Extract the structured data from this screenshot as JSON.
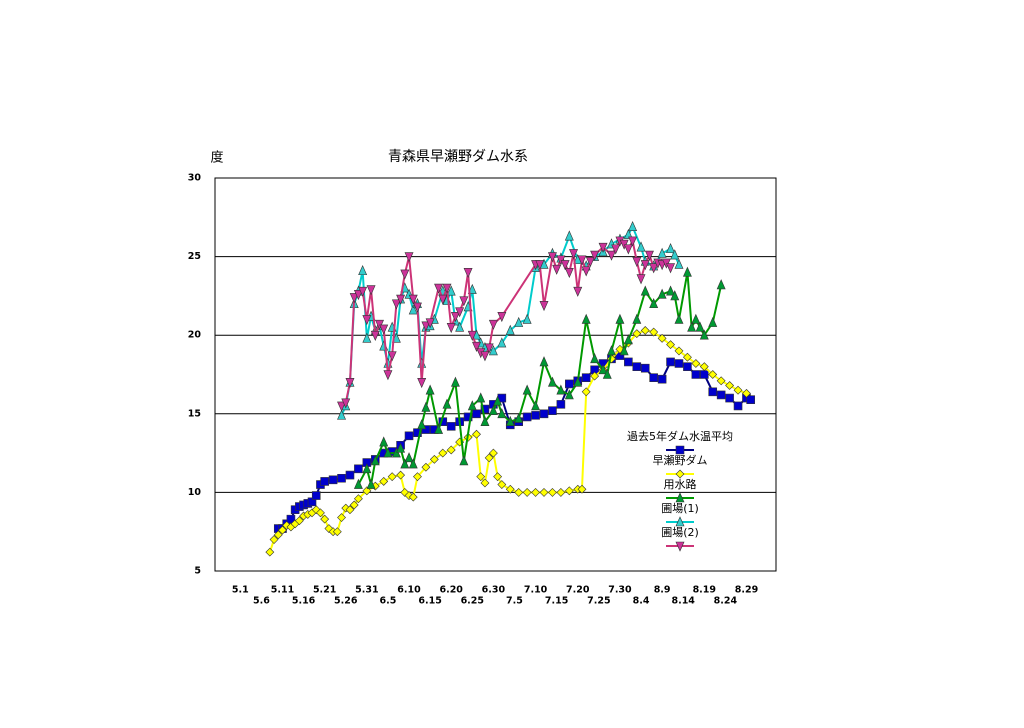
{
  "chart_data": {
    "type": "line",
    "title": "青森県早瀬野ダム水系",
    "y_label": "度",
    "xlim": [
      -6,
      127
    ],
    "ylim": [
      5,
      30
    ],
    "yticks": [
      5,
      10,
      15,
      20,
      25,
      30
    ],
    "grid": true,
    "legend": "right",
    "xticks": [
      {
        "value": 0,
        "label": "5.1"
      },
      {
        "value": 5,
        "label": "5.6"
      },
      {
        "value": 10,
        "label": "5.11"
      },
      {
        "value": 15,
        "label": "5.16"
      },
      {
        "value": 20,
        "label": "5.21"
      },
      {
        "value": 25,
        "label": "5.26"
      },
      {
        "value": 30,
        "label": "5.31"
      },
      {
        "value": 35,
        "label": "6.5"
      },
      {
        "value": 40,
        "label": "6.10"
      },
      {
        "value": 45,
        "label": "6.15"
      },
      {
        "value": 50,
        "label": "6.20"
      },
      {
        "value": 55,
        "label": "6.25"
      },
      {
        "value": 60,
        "label": "6.30"
      },
      {
        "value": 65,
        "label": "7.5"
      },
      {
        "value": 70,
        "label": "7.10"
      },
      {
        "value": 75,
        "label": "7.15"
      },
      {
        "value": 80,
        "label": "7.20"
      },
      {
        "value": 85,
        "label": "7.25"
      },
      {
        "value": 90,
        "label": "7.30"
      },
      {
        "value": 95,
        "label": "8.4"
      },
      {
        "value": 100,
        "label": "8.9"
      },
      {
        "value": 105,
        "label": "8.14"
      },
      {
        "value": 110,
        "label": "8.19"
      },
      {
        "value": 115,
        "label": "8.24"
      },
      {
        "value": 120,
        "label": "8.29"
      }
    ],
    "series": [
      {
        "name": "過去5年ダム水温平均",
        "color": "#000080",
        "marker_color": "#0000cc",
        "marker": "square",
        "x": [
          9,
          10,
          11,
          12,
          13,
          14,
          15,
          16,
          17,
          18,
          19,
          20,
          22,
          24,
          26,
          28,
          30,
          32,
          34,
          36,
          38,
          40,
          42,
          44,
          46,
          48,
          50,
          52,
          54,
          56,
          58,
          60,
          62,
          64,
          66,
          68,
          70,
          72,
          74,
          76,
          78,
          80,
          82,
          84,
          86,
          88,
          90,
          92,
          94,
          96,
          98,
          100,
          102,
          104,
          106,
          108,
          110,
          112,
          114,
          116,
          118,
          120,
          121
        ],
        "values": [
          7.7,
          7.7,
          8.0,
          8.3,
          8.9,
          9.1,
          9.2,
          9.3,
          9.4,
          9.8,
          10.5,
          10.7,
          10.8,
          10.9,
          11.1,
          11.5,
          11.9,
          12.1,
          12.5,
          12.6,
          13.0,
          13.6,
          13.8,
          14.0,
          14.0,
          14.5,
          14.2,
          14.5,
          14.8,
          15.0,
          15.3,
          15.6,
          16.0,
          14.3,
          14.5,
          14.8,
          14.9,
          15.0,
          15.2,
          15.6,
          16.9,
          17.1,
          17.3,
          17.8,
          18.2,
          18.5,
          18.7,
          18.3,
          18.0,
          17.9,
          17.3,
          17.2,
          18.3,
          18.2,
          18.0,
          17.5,
          17.5,
          16.4,
          16.2,
          16.0,
          15.5,
          16.0,
          15.9
        ]
      },
      {
        "name": "早瀬野ダム",
        "color": "#ffff00",
        "marker_color": "#ffff00",
        "marker": "diamond",
        "x": [
          7,
          8,
          9,
          10,
          11,
          12,
          13,
          14,
          15,
          16,
          17,
          18,
          19,
          20,
          21,
          22,
          23,
          24,
          25,
          26,
          27,
          28,
          30,
          32,
          34,
          36,
          38,
          39,
          40,
          41,
          42,
          44,
          46,
          48,
          50,
          52,
          54,
          56,
          57,
          58,
          59,
          60,
          61,
          62,
          64,
          66,
          68,
          70,
          72,
          74,
          76,
          78,
          80,
          81,
          82,
          84,
          86,
          88,
          90,
          92,
          94,
          96,
          98,
          100,
          102,
          104,
          106,
          108,
          110,
          112,
          114,
          116,
          118,
          120
        ],
        "values": [
          6.2,
          7.0,
          7.3,
          7.6,
          7.9,
          7.8,
          8.0,
          8.2,
          8.5,
          8.6,
          8.7,
          8.9,
          8.7,
          8.3,
          7.7,
          7.5,
          7.5,
          8.4,
          9.0,
          8.9,
          9.2,
          9.6,
          10.1,
          10.4,
          10.7,
          11.0,
          11.1,
          10.0,
          9.8,
          9.7,
          11.0,
          11.6,
          12.1,
          12.5,
          12.7,
          13.2,
          13.5,
          13.7,
          11.0,
          10.6,
          12.2,
          12.5,
          11.0,
          10.5,
          10.2,
          10.0,
          10.0,
          10.0,
          10.0,
          10.0,
          10.0,
          10.1,
          10.2,
          10.2,
          16.4,
          17.4,
          17.8,
          18.5,
          19.1,
          19.5,
          20.1,
          20.3,
          20.2,
          19.8,
          19.4,
          19.0,
          18.6,
          18.2,
          18.0,
          17.5,
          17.1,
          16.8,
          16.5,
          16.3
        ]
      },
      {
        "name": "用水路",
        "color": "#009900",
        "marker_color": "#009933",
        "marker": "triangle-up",
        "x": [
          28,
          30,
          31,
          32,
          34,
          35,
          37,
          38,
          39,
          40,
          41,
          43,
          44,
          45,
          47,
          49,
          51,
          53,
          55,
          57,
          58,
          60,
          61,
          62,
          64,
          66,
          68,
          70,
          72,
          74,
          76,
          78,
          80,
          82,
          84,
          86,
          87,
          88,
          90,
          91,
          92,
          94,
          96,
          98,
          100,
          102,
          103,
          104,
          106,
          107,
          108,
          109,
          110,
          112,
          114
        ],
        "values": [
          10.5,
          11.5,
          10.5,
          12.0,
          13.2,
          12.5,
          12.5,
          12.8,
          11.8,
          12.2,
          11.8,
          14.3,
          15.4,
          16.5,
          14.0,
          15.6,
          17.0,
          12.0,
          15.5,
          16.0,
          14.5,
          15.2,
          15.8,
          15.0,
          14.5,
          14.7,
          16.5,
          15.5,
          18.3,
          17.0,
          16.5,
          16.2,
          17.0,
          21.0,
          18.5,
          17.8,
          17.5,
          19.0,
          21.0,
          19.0,
          19.7,
          21.0,
          22.8,
          22.0,
          22.6,
          22.8,
          22.5,
          21.0,
          24.0,
          20.5,
          21.0,
          20.5,
          20.0,
          20.8,
          23.2
        ]
      },
      {
        "name": "圃場(1)",
        "color": "#00cccc",
        "marker_color": "#33cccc",
        "marker": "triangle-up",
        "x": [
          24,
          25,
          26,
          27,
          28,
          29,
          30,
          31,
          32,
          33,
          34,
          35,
          36,
          37,
          38,
          39,
          40,
          41,
          42,
          43,
          44,
          45,
          46,
          48,
          49,
          50,
          51,
          52,
          54,
          55,
          56,
          57,
          58,
          60,
          62,
          64,
          66,
          68,
          70,
          72,
          74,
          76,
          78,
          80,
          82,
          84,
          86,
          88,
          90,
          92,
          93,
          95,
          96,
          98,
          100,
          102,
          103,
          104
        ],
        "values": [
          14.9,
          15.5,
          17.0,
          22.0,
          22.8,
          24.1,
          19.8,
          21.2,
          20.3,
          20.6,
          19.3,
          18.2,
          20.5,
          19.8,
          22.3,
          23.0,
          22.6,
          21.6,
          22.0,
          18.2,
          20.5,
          20.6,
          21.0,
          22.8,
          22.2,
          22.8,
          20.9,
          20.5,
          21.8,
          22.9,
          20.0,
          19.5,
          19.2,
          19.0,
          19.5,
          20.3,
          20.8,
          21.0,
          24.3,
          24.5,
          25.2,
          24.9,
          26.3,
          24.8,
          24.4,
          25.0,
          25.3,
          25.8,
          26.1,
          26.4,
          26.9,
          25.6,
          24.7,
          24.4,
          25.2,
          25.5,
          25.1,
          24.5
        ]
      },
      {
        "name": "圃場(2)",
        "color": "#cc3377",
        "marker_color": "#cc3399",
        "marker": "triangle-down",
        "x": [
          24,
          25,
          26,
          27,
          28,
          29,
          30,
          31,
          32,
          33,
          34,
          35,
          36,
          37,
          38,
          39,
          40,
          41,
          42,
          43,
          44,
          45,
          47,
          48,
          49,
          50,
          51,
          52,
          53,
          54,
          55,
          56,
          57,
          58,
          59,
          60,
          62,
          70,
          71,
          72,
          74,
          75,
          76,
          77,
          78,
          79,
          80,
          81,
          82,
          83,
          84,
          86,
          88,
          89,
          90,
          91,
          92,
          93,
          94,
          95,
          96,
          97,
          98,
          99,
          100,
          101,
          102
        ],
        "values": [
          15.5,
          15.7,
          17.0,
          22.4,
          22.6,
          22.8,
          21.0,
          22.9,
          20.0,
          20.7,
          20.4,
          17.5,
          18.7,
          22.0,
          22.3,
          23.9,
          25.0,
          22.3,
          21.8,
          17.0,
          20.6,
          20.8,
          23.0,
          22.3,
          23.0,
          20.5,
          21.2,
          21.5,
          22.2,
          24.0,
          20.0,
          19.3,
          18.9,
          18.7,
          19.2,
          20.7,
          21.2,
          24.5,
          24.5,
          21.9,
          25.0,
          24.2,
          24.8,
          24.5,
          24.0,
          25.2,
          22.8,
          24.8,
          24.1,
          24.7,
          25.1,
          25.6,
          25.1,
          25.5,
          26.0,
          25.8,
          25.5,
          26.0,
          24.7,
          23.6,
          24.5,
          25.1,
          24.3,
          24.6,
          24.5,
          24.6,
          24.3
        ]
      }
    ]
  }
}
